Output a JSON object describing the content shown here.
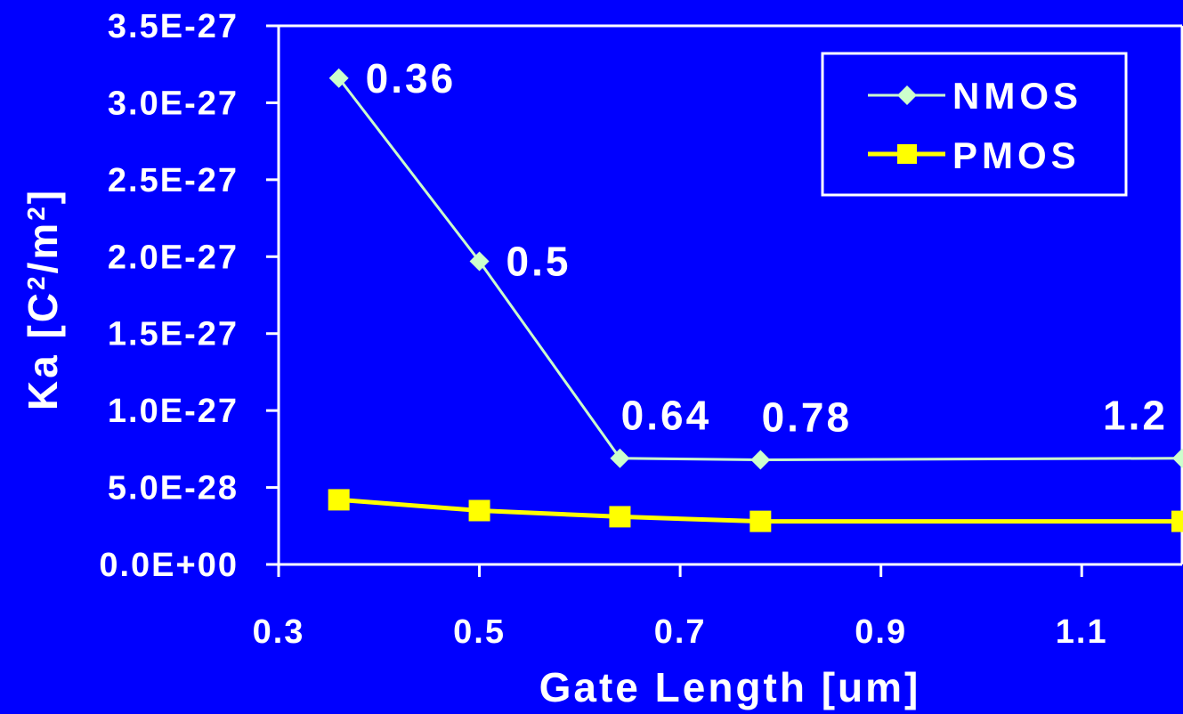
{
  "chart_data": {
    "type": "line",
    "xlabel": "Gate Length [um]",
    "ylabel_main": "Ka [C",
    "ylabel_sup1": "2",
    "ylabel_mid": "/m",
    "ylabel_sup2": "2",
    "ylabel_end": "]",
    "xlim": [
      0.3,
      1.2
    ],
    "ylim": [
      0,
      3.5e-27
    ],
    "x_ticks": [
      0.3,
      0.5,
      0.7,
      0.9,
      1.1
    ],
    "x_tick_labels": [
      "0.3",
      "0.5",
      "0.7",
      "0.9",
      "1.1"
    ],
    "y_ticks": [
      0,
      5e-28,
      1e-27,
      1.5e-27,
      2e-27,
      2.5e-27,
      3e-27,
      3.5e-27
    ],
    "y_tick_labels": [
      "0.0E+00",
      "5.0E-28",
      "1.0E-27",
      "1.5E-27",
      "2.0E-27",
      "2.5E-27",
      "3.0E-27",
      "3.5E-27"
    ],
    "grid": false,
    "legend_position": "top-right",
    "series": [
      {
        "name": "NMOS",
        "color": "#ccffcc",
        "marker": "diamond",
        "x": [
          0.36,
          0.5,
          0.64,
          0.78,
          1.2
        ],
        "y": [
          3.16e-27,
          1.97e-27,
          6.9e-28,
          6.8e-28,
          6.9e-28
        ]
      },
      {
        "name": "PMOS",
        "color": "#ffff00",
        "marker": "square",
        "x": [
          0.36,
          0.5,
          0.64,
          0.78,
          1.2
        ],
        "y": [
          4.2e-28,
          3.5e-28,
          3.1e-28,
          2.8e-28,
          2.8e-28
        ]
      }
    ],
    "annotations": [
      {
        "text": "0.36",
        "x": 0.36,
        "y": 3.16e-27,
        "anchor": "right"
      },
      {
        "text": "0.5",
        "x": 0.5,
        "y": 1.97e-27,
        "anchor": "right"
      },
      {
        "text": "0.64",
        "x": 0.64,
        "y": 6.9e-28,
        "anchor": "above"
      },
      {
        "text": "0.78",
        "x": 0.78,
        "y": 6.8e-28,
        "anchor": "above"
      },
      {
        "text": "1.2",
        "x": 1.2,
        "y": 6.9e-28,
        "anchor": "above-left"
      }
    ]
  }
}
